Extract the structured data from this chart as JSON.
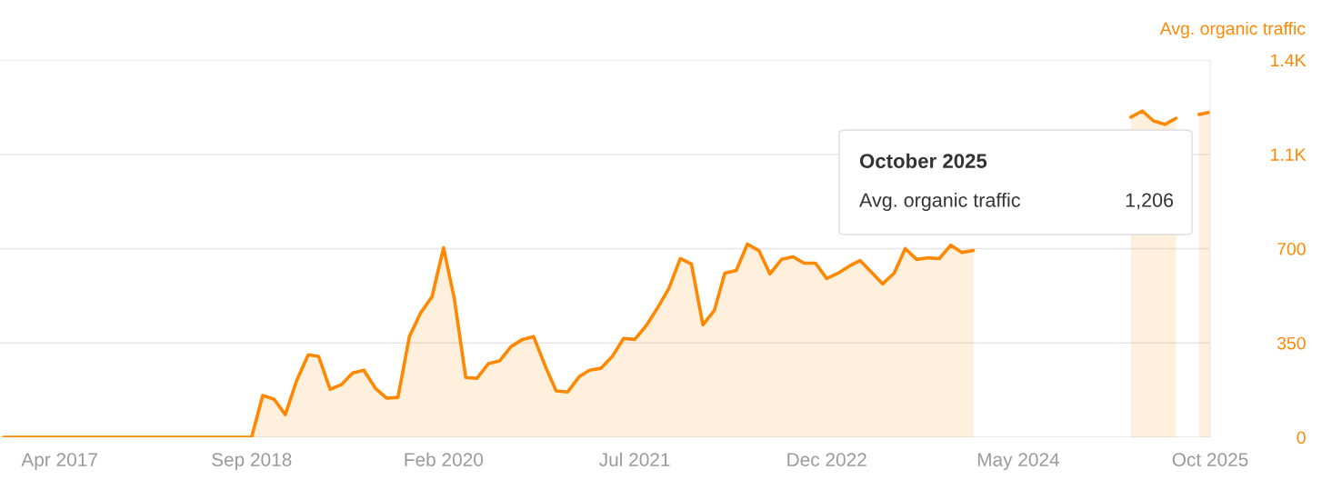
{
  "chart_data": {
    "type": "area",
    "ylabel": "Avg. organic traffic",
    "x": [
      "2016-11",
      "2016-12",
      "2017-01",
      "2017-02",
      "2017-03",
      "2017-04",
      "2017-05",
      "2017-06",
      "2017-07",
      "2017-08",
      "2017-09",
      "2017-10",
      "2017-11",
      "2017-12",
      "2018-01",
      "2018-02",
      "2018-03",
      "2018-04",
      "2018-05",
      "2018-06",
      "2018-07",
      "2018-08",
      "2018-09",
      "2018-10",
      "2018-11",
      "2018-12",
      "2019-01",
      "2019-02",
      "2019-03",
      "2019-04",
      "2019-05",
      "2019-06",
      "2019-07",
      "2019-08",
      "2019-09",
      "2019-10",
      "2019-11",
      "2019-12",
      "2020-01",
      "2020-02",
      "2020-03",
      "2020-04",
      "2020-05",
      "2020-06",
      "2020-07",
      "2020-08",
      "2020-09",
      "2020-10",
      "2020-11",
      "2020-12",
      "2021-01",
      "2021-02",
      "2021-03",
      "2021-04",
      "2021-05",
      "2021-06",
      "2021-07",
      "2021-08",
      "2021-09",
      "2021-10",
      "2021-11",
      "2021-12",
      "2022-01",
      "2022-02",
      "2022-03",
      "2022-04",
      "2022-05",
      "2022-06",
      "2022-07",
      "2022-08",
      "2022-09",
      "2022-10",
      "2022-11",
      "2022-12",
      "2023-01",
      "2023-02",
      "2023-03",
      "2023-04",
      "2023-05",
      "2023-06",
      "2023-07",
      "2023-08",
      "2023-09",
      "2023-10",
      "2023-11",
      "2023-12",
      "2024-01",
      "2024-02",
      "2024-03",
      "2024-04",
      "2024-05",
      "2024-06",
      "2024-07",
      "2024-08",
      "2024-09",
      "2024-10",
      "2024-11",
      "2024-12",
      "2025-01",
      "2025-02",
      "2025-03",
      "2025-04",
      "2025-05",
      "2025-06",
      "2025-07",
      "2025-08",
      "2025-09",
      "2025-10"
    ],
    "series": [
      {
        "color": "#ff8800",
        "values": [
          0,
          0,
          0,
          0,
          0,
          0,
          0,
          0,
          0,
          0,
          0,
          0,
          0,
          0,
          0,
          0,
          0,
          0,
          0,
          0,
          0,
          0,
          0,
          155,
          141,
          84,
          212,
          306,
          300,
          178,
          195,
          239,
          249,
          182,
          145,
          148,
          374,
          461,
          522,
          703,
          515,
          222,
          219,
          273,
          283,
          336,
          363,
          374,
          266,
          172,
          168,
          225,
          249,
          256,
          299,
          367,
          363,
          414,
          481,
          552,
          663,
          643,
          417,
          471,
          609,
          619,
          717,
          693,
          606,
          660,
          670,
          646,
          646,
          589,
          609,
          636,
          656,
          612,
          569,
          609,
          700,
          660,
          666,
          663,
          713,
          686,
          693,
          null,
          null,
          null,
          null,
          null,
          null,
          null,
          null,
          null,
          null,
          null,
          null,
          null,
          1188,
          1211,
          1174,
          1161,
          1184,
          null,
          1198,
          1206
        ]
      }
    ],
    "xlim": [
      "2016-10-22",
      "2025-10-01"
    ],
    "xticks": [
      {
        "value": "2017-04",
        "label": "Apr 2017"
      },
      {
        "value": "2018-09",
        "label": "Sep 2018"
      },
      {
        "value": "2020-02",
        "label": "Feb 2020"
      },
      {
        "value": "2021-07",
        "label": "Jul 2021"
      },
      {
        "value": "2022-12",
        "label": "Dec 2022"
      },
      {
        "value": "2024-05",
        "label": "May 2024"
      },
      {
        "value": "2025-10",
        "label": "Oct 2025"
      }
    ],
    "ylim": [
      0,
      1400
    ],
    "yticks": [
      0,
      350,
      700,
      {
        "value": 1050,
        "label": "1.1K"
      },
      {
        "value": 1400,
        "label": "1.4K"
      }
    ],
    "grid": "y",
    "annotations": [
      "October 2025",
      "Avg. organic traffic",
      "1,206"
    ]
  }
}
